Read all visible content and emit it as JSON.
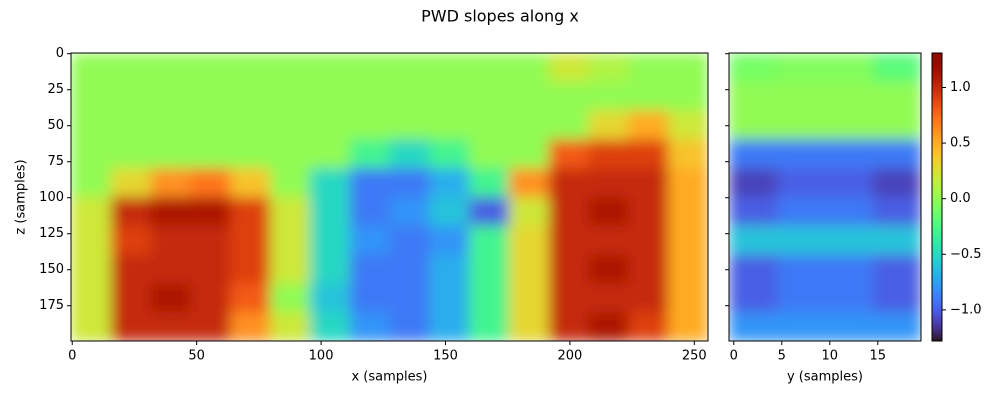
{
  "chart_data": {
    "type": "heatmap",
    "title": "PWD slopes along x",
    "colormap": "turbo",
    "panels": [
      {
        "xlabel": "x (samples)",
        "ylabel": "z (samples)",
        "xlim": [
          -0.5,
          255.5
        ],
        "ylim": [
          199.5,
          -0.5
        ],
        "xticks": [
          0,
          50,
          100,
          150,
          200,
          250
        ],
        "yticks": [
          0,
          25,
          50,
          75,
          100,
          125,
          150,
          175
        ],
        "x_edges": [
          -0.5,
          15.5,
          31.5,
          47.5,
          63.5,
          79.5,
          95.5,
          111.5,
          127.5,
          143.5,
          159.5,
          175.5,
          191.5,
          207.5,
          223.5,
          239.5,
          255.5
        ],
        "y_edges": [
          -0.5,
          19.5,
          39.5,
          59.5,
          79.5,
          99.5,
          119.5,
          139.5,
          159.5,
          179.5,
          199.5
        ],
        "values": [
          [
            0,
            0,
            0,
            0,
            0,
            0,
            0,
            0,
            0,
            0,
            0,
            0,
            0.2,
            0.1,
            0,
            0
          ],
          [
            0,
            0,
            0,
            0,
            0,
            0,
            0,
            0,
            0,
            0,
            0,
            0,
            0,
            0,
            0,
            0
          ],
          [
            0,
            0,
            0,
            0,
            0,
            0,
            0,
            0,
            0,
            0,
            0,
            0,
            0,
            0.3,
            0.5,
            0.2
          ],
          [
            0,
            0,
            0,
            0,
            0,
            0,
            0,
            -0.3,
            -0.5,
            -0.3,
            0,
            0,
            0.8,
            0.9,
            0.9,
            0.4
          ],
          [
            0,
            0.3,
            0.6,
            0.7,
            0.4,
            0,
            -0.5,
            -0.9,
            -0.9,
            -0.7,
            -0.3,
            0.6,
            1.0,
            1.0,
            1.0,
            0.5
          ],
          [
            0.2,
            1.0,
            1.1,
            1.1,
            0.9,
            0.2,
            -0.5,
            -0.9,
            -0.8,
            -0.6,
            -1.0,
            0.2,
            1.0,
            1.1,
            1.0,
            0.5
          ],
          [
            0.2,
            0.9,
            1.0,
            1.0,
            0.9,
            0.2,
            -0.5,
            -0.8,
            -0.9,
            -0.8,
            -0.3,
            0.3,
            1.0,
            1.0,
            1.0,
            0.5
          ],
          [
            0.2,
            1.0,
            1.0,
            1.0,
            0.9,
            0.2,
            -0.5,
            -0.9,
            -0.9,
            -0.7,
            -0.3,
            0.3,
            1.0,
            1.1,
            1.0,
            0.5
          ],
          [
            0.2,
            1.0,
            1.1,
            1.0,
            0.8,
            0,
            -0.6,
            -0.9,
            -0.9,
            -0.7,
            -0.3,
            0.3,
            1.0,
            1.0,
            1.0,
            0.5
          ],
          [
            0.2,
            1.0,
            1.0,
            1.0,
            0.6,
            0.2,
            -0.5,
            -0.8,
            -0.9,
            -0.7,
            -0.3,
            0.3,
            1.0,
            1.1,
            0.9,
            0.5
          ]
        ]
      },
      {
        "xlabel": "y (samples)",
        "xlim": [
          -0.5,
          19.5
        ],
        "ylim": [
          199.5,
          -0.5
        ],
        "xticks": [
          0,
          5,
          10,
          15
        ],
        "x_edges": [
          -0.5,
          4.5,
          9.5,
          14.5,
          19.5
        ],
        "y_edges": [
          -0.5,
          19.5,
          39.5,
          59.5,
          79.5,
          99.5,
          119.5,
          139.5,
          159.5,
          179.5,
          199.5
        ],
        "values": [
          [
            -0.1,
            -0.05,
            -0.05,
            -0.2
          ],
          [
            0,
            0,
            0,
            0
          ],
          [
            0,
            0,
            0,
            0
          ],
          [
            -0.9,
            -0.9,
            -0.9,
            -0.9
          ],
          [
            -1.1,
            -1.0,
            -1.0,
            -1.1
          ],
          [
            -1.0,
            -0.9,
            -0.9,
            -1.0
          ],
          [
            -0.6,
            -0.6,
            -0.6,
            -0.6
          ],
          [
            -1.0,
            -0.9,
            -0.9,
            -1.0
          ],
          [
            -1.0,
            -0.9,
            -0.9,
            -1.0
          ],
          [
            -0.8,
            -0.8,
            -0.8,
            -0.8
          ]
        ]
      }
    ],
    "colorbar": {
      "lim": [
        -1.28,
        1.31
      ],
      "ticks": [
        {
          "value": -1,
          "label": "−1.0"
        },
        {
          "value": -0.5,
          "label": "−0.5"
        },
        {
          "value": 0,
          "label": "0.0"
        },
        0.5,
        {
          "value": 1,
          "label": "1.0"
        }
      ]
    }
  }
}
